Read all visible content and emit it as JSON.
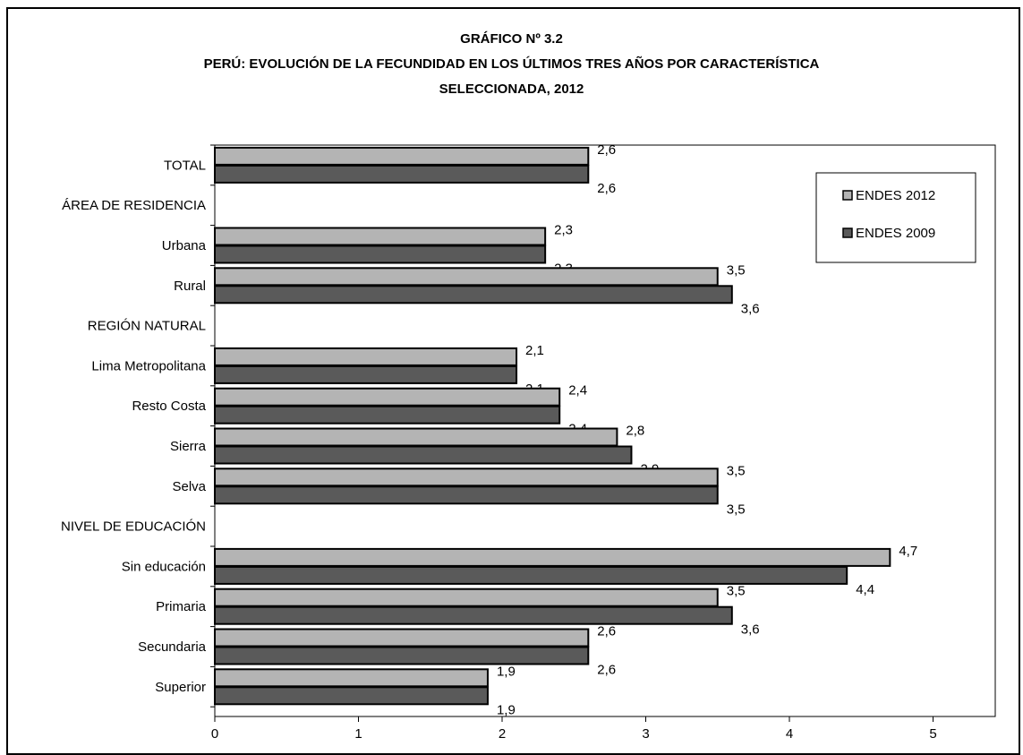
{
  "chart_data": {
    "type": "bar",
    "orientation": "horizontal",
    "title_lines": [
      "GRÁFICO Nº 3.2",
      "PERÚ: EVOLUCIÓN DE LA FECUNDIDAD EN LOS ÚLTIMOS TRES AÑOS POR CARACTERÍSTICA",
      "SELECCIONADA, 2012"
    ],
    "categories": [
      {
        "label": "TOTAL",
        "v2012": 2.6,
        "v2009": 2.6
      },
      {
        "label": "ÁREA DE RESIDENCIA",
        "header": true
      },
      {
        "label": "Urbana",
        "v2012": 2.3,
        "v2009": 2.3
      },
      {
        "label": "Rural",
        "v2012": 3.5,
        "v2009": 3.6
      },
      {
        "label": "REGIÓN NATURAL",
        "header": true
      },
      {
        "label": "Lima Metropolitana",
        "v2012": 2.1,
        "v2009": 2.1
      },
      {
        "label": "Resto Costa",
        "v2012": 2.4,
        "v2009": 2.4
      },
      {
        "label": "Sierra",
        "v2012": 2.8,
        "v2009": 2.9
      },
      {
        "label": "Selva",
        "v2012": 3.5,
        "v2009": 3.5
      },
      {
        "label": "NIVEL DE EDUCACIÓN",
        "header": true
      },
      {
        "label": "Sin educación",
        "v2012": 4.7,
        "v2009": 4.4
      },
      {
        "label": "Primaria",
        "v2012": 3.5,
        "v2009": 3.6
      },
      {
        "label": "Secundaria",
        "v2012": 2.6,
        "v2009": 2.6
      },
      {
        "label": "Superior",
        "v2012": 1.9,
        "v2009": 1.9
      }
    ],
    "series": [
      {
        "name": "ENDES 2012",
        "key": "v2012",
        "color": "#b4b4b4"
      },
      {
        "name": "ENDES 2009",
        "key": "v2009",
        "color": "#5a5a5a"
      }
    ],
    "xlim": [
      0,
      5.5
    ],
    "xticks": [
      0,
      1,
      2,
      3,
      4,
      5
    ],
    "legend_position": "top-right",
    "grid": false,
    "decimal_separator": ","
  }
}
